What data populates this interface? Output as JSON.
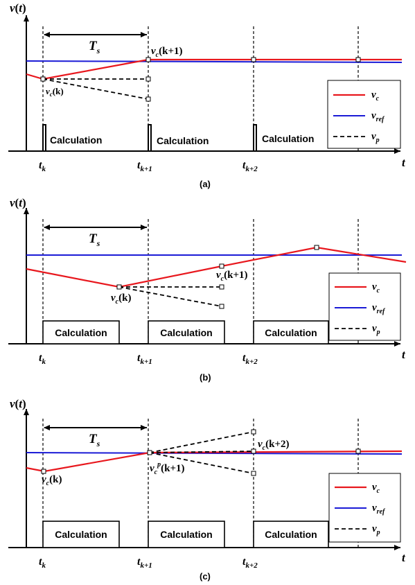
{
  "panels": [
    {
      "caption": "(a)",
      "y_label": {
        "v": "v",
        "paren_open": "(",
        "t": "t",
        "paren_close": ")"
      },
      "x_label": "t",
      "ts": {
        "T": "T",
        "s": "s"
      },
      "ticks": [
        {
          "base": "t",
          "sub": "k"
        },
        {
          "base": "t",
          "sub": "k+1"
        },
        {
          "base": "t",
          "sub": "k+2"
        }
      ],
      "blocks": [
        "Calculation",
        "Calculation",
        "Calculation"
      ],
      "annotations": [
        {
          "base": "v",
          "sub": "c",
          "text": "(k)"
        },
        {
          "base": "v",
          "sub": "c",
          "text": "(k+1)"
        }
      ],
      "legend": [
        {
          "base": "v",
          "sub": "c"
        },
        {
          "base": "v",
          "sub": "ref"
        },
        {
          "base": "v",
          "sub": "p"
        }
      ]
    },
    {
      "caption": "(b)",
      "y_label": {
        "v": "v",
        "paren_open": "(",
        "t": "t",
        "paren_close": ")"
      },
      "x_label": "t",
      "ts": {
        "T": "T",
        "s": "s"
      },
      "ticks": [
        {
          "base": "t",
          "sub": "k"
        },
        {
          "base": "t",
          "sub": "k+1"
        },
        {
          "base": "t",
          "sub": "k+2"
        }
      ],
      "blocks": [
        "Calculation",
        "Calculation",
        "Calculation"
      ],
      "annotations": [
        {
          "base": "v",
          "sub": "c",
          "text": "(k)"
        },
        {
          "base": "v",
          "sub": "c",
          "text": "(k+1)"
        }
      ],
      "legend": [
        {
          "base": "v",
          "sub": "c"
        },
        {
          "base": "v",
          "sub": "ref"
        },
        {
          "base": "v",
          "sub": "p"
        }
      ]
    },
    {
      "caption": "(c)",
      "y_label": {
        "v": "v",
        "paren_open": "(",
        "t": "t",
        "paren_close": ")"
      },
      "x_label": "t",
      "ts": {
        "T": "T",
        "s": "s"
      },
      "ticks": [
        {
          "base": "t",
          "sub": "k"
        },
        {
          "base": "t",
          "sub": "k+1"
        },
        {
          "base": "t",
          "sub": "k+2"
        }
      ],
      "blocks": [
        "Calculation",
        "Calculation",
        "Calculation"
      ],
      "annotations": [
        {
          "base": "v",
          "sub": "c",
          "text": "(k)"
        },
        {
          "base": "v",
          "sub": "c",
          "sup": "p",
          "text": "(k+1)"
        },
        {
          "base": "v",
          "sub": "c",
          "text": "(k+2)"
        }
      ],
      "legend": [
        {
          "base": "v",
          "sub": "c"
        },
        {
          "base": "v",
          "sub": "ref"
        },
        {
          "base": "v",
          "sub": "p"
        }
      ]
    }
  ],
  "colors": {
    "vc": "#e8171d",
    "vref": "#1a1ad6",
    "vp": "#000000"
  }
}
